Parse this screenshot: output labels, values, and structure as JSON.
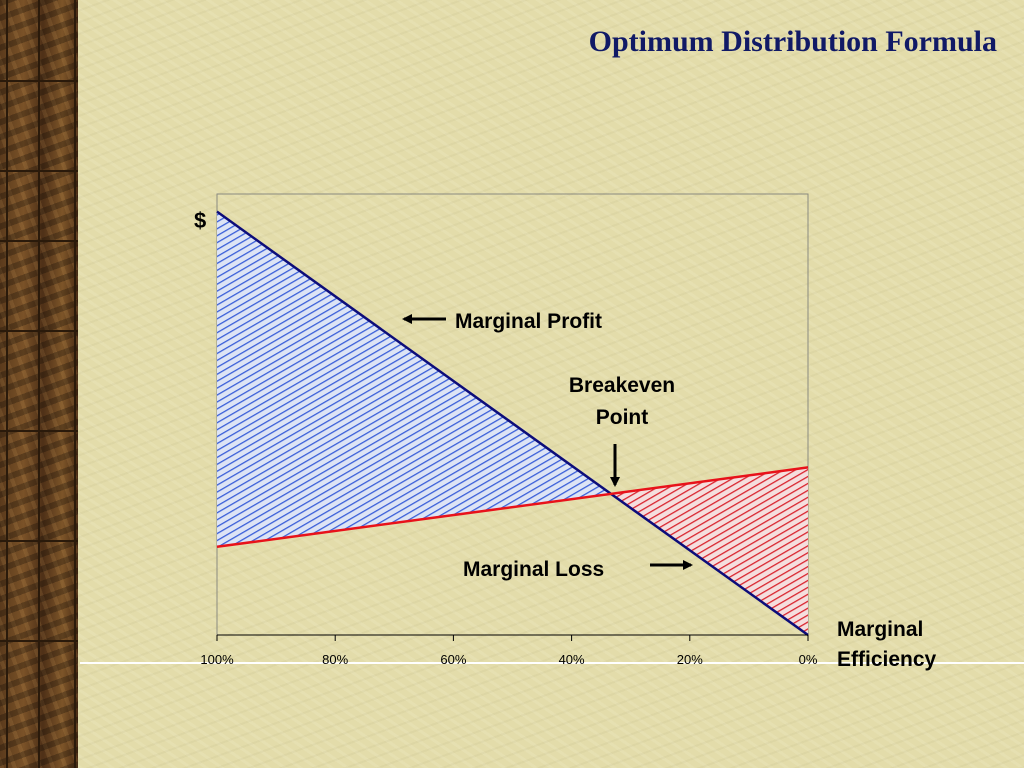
{
  "slide": {
    "title": "Optimum Distribution Formula"
  },
  "chart_data": {
    "type": "line",
    "title": "",
    "ylabel": "$",
    "xlabel": "Marginal Efficiency",
    "x_tick_labels": [
      "100%",
      "80%",
      "60%",
      "40%",
      "20%",
      "0%"
    ],
    "x_axis_direction": "descending",
    "xlim": [
      100,
      0
    ],
    "ylim": [
      0,
      100
    ],
    "y_ticks_shown": false,
    "grid": false,
    "series": [
      {
        "name": "",
        "x": [
          100,
          0
        ],
        "y": [
          96,
          0
        ],
        "color": "#0d0d7a"
      },
      {
        "name": "",
        "x": [
          100,
          0
        ],
        "y": [
          20,
          38
        ],
        "color": "#e8121a"
      }
    ],
    "shaded_regions": [
      {
        "label": "Marginal Profit",
        "color": "#3a5fd9",
        "between": "blue line above red line"
      },
      {
        "label": "Marginal Loss",
        "color": "#d9252f",
        "between": "red line above blue line"
      }
    ],
    "annotations": {
      "marginal_profit": "Marginal Profit",
      "breakeven_line1": "Breakeven",
      "breakeven_line2": "Point",
      "marginal_loss": "Marginal Loss",
      "xlabel_line1": "Marginal",
      "xlabel_line2": "Efficiency"
    }
  }
}
